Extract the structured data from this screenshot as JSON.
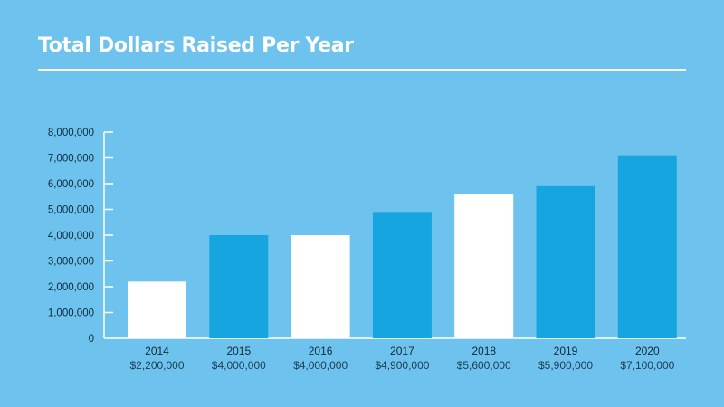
{
  "title": "Total Dollars Raised Per Year",
  "colors": {
    "background": "#6ec3ee",
    "bar_white": "#ffffff",
    "bar_blue": "#16a5df",
    "text": "#0d2a3a",
    "subtext": "#1b3d52"
  },
  "chart_data": {
    "type": "bar",
    "title": "Total Dollars Raised Per Year",
    "xlabel": "",
    "ylabel": "",
    "ylim": [
      0,
      8000000
    ],
    "yticks": [
      0,
      1000000,
      2000000,
      3000000,
      4000000,
      5000000,
      6000000,
      7000000,
      8000000
    ],
    "ytick_labels": [
      "0",
      "1,000,000",
      "2,000,000",
      "3,000,000",
      "4,000,000",
      "5,000,000",
      "6,000,000",
      "7,000,000",
      "8,000,000"
    ],
    "grid": false,
    "categories": [
      "2014",
      "2015",
      "2016",
      "2017",
      "2018",
      "2019",
      "2020"
    ],
    "values": [
      2200000,
      4000000,
      4000000,
      4900000,
      5600000,
      5900000,
      7100000
    ],
    "value_labels": [
      "$2,200,000",
      "$4,000,000",
      "$4,000,000",
      "$4,900,000",
      "$5,600,000",
      "$5,900,000",
      "$7,100,000"
    ],
    "bar_colors": [
      "white",
      "blue",
      "white",
      "blue",
      "white",
      "blue",
      "blue"
    ]
  }
}
